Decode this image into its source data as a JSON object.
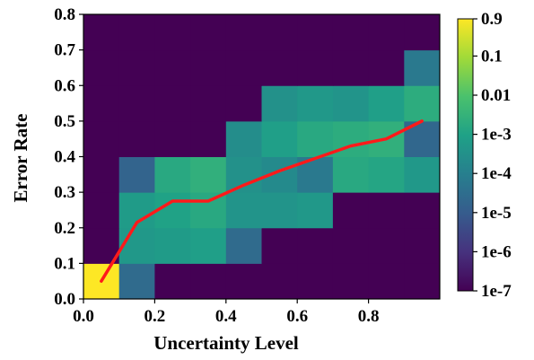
{
  "chart_data": {
    "type": "heatmap",
    "title": "",
    "xlabel": "Uncertainty Level",
    "ylabel": "Error Rate",
    "xlim": [
      0,
      1.0
    ],
    "ylim": [
      0,
      0.8
    ],
    "x_ticks": [
      0.0,
      0.2,
      0.4,
      0.6,
      0.8
    ],
    "x_tick_labels": [
      "0.0",
      "0.2",
      "0.4",
      "0.6",
      "0.8"
    ],
    "y_ticks": [
      0.0,
      0.1,
      0.2,
      0.3,
      0.4,
      0.5,
      0.6,
      0.7,
      0.8
    ],
    "y_tick_labels": [
      "0.0",
      "0.1",
      "0.2",
      "0.3",
      "0.4",
      "0.5",
      "0.6",
      "0.7",
      "0.8"
    ],
    "cell_width": 0.1,
    "cell_height": 0.1,
    "heatmap_note": "grid rows ordered from y=0.0-0.1 (first) to y=0.7-0.8 (last); columns from x=0.0-0.1 to x=0.9-1.0; values are log10 of density (-7 = background)",
    "log10_values": [
      [
        -0.05,
        -4.6,
        -7,
        -7,
        -7,
        -7,
        -7,
        -7,
        -7,
        -7
      ],
      [
        -7,
        -3.3,
        -3.2,
        -3.1,
        -4.6,
        -7,
        -7,
        -7,
        -7,
        -7
      ],
      [
        -7,
        -3.2,
        -3.0,
        -2.8,
        -3.4,
        -3.4,
        -3.3,
        -7,
        -7,
        -7
      ],
      [
        -7,
        -4.8,
        -2.8,
        -2.6,
        -3.5,
        -3.7,
        -4.2,
        -2.8,
        -2.9,
        -3.3
      ],
      [
        -7,
        -7,
        -7,
        -7,
        -3.6,
        -3.1,
        -2.8,
        -2.7,
        -2.6,
        -4.7
      ],
      [
        -7,
        -7,
        -7,
        -7,
        -7,
        -3.5,
        -3.3,
        -3.4,
        -3.1,
        -2.7
      ],
      [
        -7,
        -7,
        -7,
        -7,
        -7,
        -7,
        -7,
        -7,
        -7,
        -4.2
      ],
      [
        -7,
        -7,
        -7,
        -7,
        -7,
        -7,
        -7,
        -7,
        -7,
        -7
      ]
    ],
    "line_series": {
      "color": "#ff1a1a",
      "x": [
        0.05,
        0.15,
        0.25,
        0.35,
        0.45,
        0.55,
        0.65,
        0.75,
        0.85,
        0.95
      ],
      "y": [
        0.05,
        0.215,
        0.275,
        0.275,
        0.32,
        0.36,
        0.395,
        0.43,
        0.45,
        0.5
      ]
    },
    "colorbar": {
      "colormap": "viridis",
      "scale": "log",
      "tick_labels": [
        "0.9",
        "0.1",
        "0.01",
        "1e-3",
        "1e-4",
        "1e-5",
        "1e-6",
        "1e-7"
      ],
      "tick_log10": [
        -0.05,
        -1,
        -2,
        -3,
        -4,
        -5,
        -6,
        -7
      ]
    },
    "grid": false,
    "legend": "none"
  }
}
